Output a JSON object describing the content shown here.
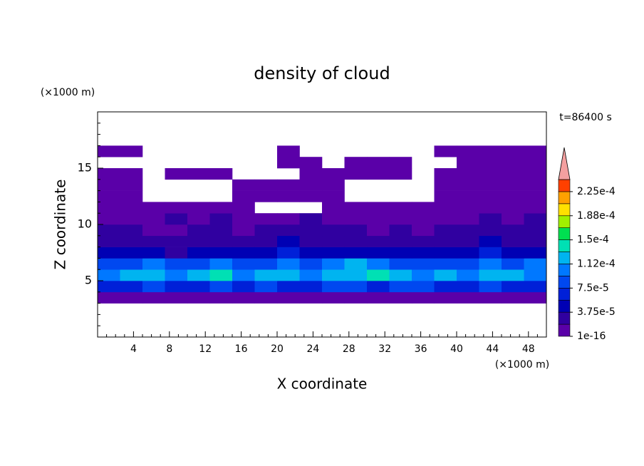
{
  "chart_data": {
    "type": "heatmap",
    "title": "density of cloud",
    "x_label": "X coordinate",
    "y_label": "Z coordinate",
    "x_unit": "(×1000 m)",
    "y_unit": "(×1000 m)",
    "annotation": "t=86400 s",
    "xlim": [
      0,
      50
    ],
    "ylim": [
      0,
      20
    ],
    "xticks": [
      4,
      8,
      12,
      16,
      20,
      24,
      28,
      32,
      36,
      40,
      44,
      48
    ],
    "yticks": [
      5,
      10,
      15
    ],
    "xminorticks": [
      1,
      2,
      3,
      5,
      6,
      7,
      9,
      10,
      11,
      13,
      14,
      15,
      17,
      18,
      19,
      21,
      22,
      23,
      25,
      26,
      27,
      29,
      30,
      31,
      33,
      34,
      35,
      37,
      38,
      39,
      41,
      42,
      43,
      45,
      46,
      47,
      49
    ],
    "yminorticks": [
      1,
      2,
      3,
      4,
      6,
      7,
      8,
      9,
      11,
      12,
      13,
      14,
      16,
      17,
      18,
      19
    ],
    "x_edges": [
      0,
      2.5,
      5,
      7.5,
      10,
      12.5,
      15,
      17.5,
      20,
      22.5,
      25,
      27.5,
      30,
      32.5,
      35,
      37.5,
      40,
      42.5,
      45,
      47.5,
      50
    ],
    "y_edges": [
      3,
      4,
      5,
      6,
      7,
      8,
      9,
      10,
      11,
      12,
      13,
      14,
      15,
      16,
      17
    ],
    "values": [
      [
        5e-06,
        5e-06,
        5e-06,
        5e-06,
        5e-06,
        5e-06,
        5e-06,
        5e-06,
        5e-06,
        5e-06,
        5e-06,
        5e-06,
        5e-06,
        5e-06,
        5e-06,
        5e-06,
        5e-06,
        5e-06,
        5e-06,
        5e-06
      ],
      [
        6e-05,
        7e-05,
        8e-05,
        6e-05,
        7e-05,
        9e-05,
        7e-05,
        8e-05,
        6e-05,
        7e-05,
        8e-05,
        9e-05,
        7e-05,
        8e-05,
        9e-05,
        7e-05,
        6e-05,
        8e-05,
        7e-05,
        6e-05
      ],
      [
        0.00011,
        0.00013,
        0.00012,
        0.0001,
        0.00012,
        0.00014,
        0.00011,
        0.00013,
        0.00012,
        0.0001,
        0.00012,
        0.00013,
        0.00014,
        0.00012,
        0.00011,
        0.00012,
        0.0001,
        0.00013,
        0.00012,
        0.0001
      ],
      [
        8e-05,
        9e-05,
        0.0001,
        8e-05,
        9e-05,
        0.0001,
        9e-05,
        8e-05,
        0.00011,
        9e-05,
        0.0001,
        0.00012,
        0.0001,
        8e-05,
        9e-05,
        8e-05,
        9e-05,
        0.0001,
        9e-05,
        0.0001
      ],
      [
        4e-05,
        5e-05,
        4e-05,
        3e-05,
        4e-05,
        5e-05,
        4e-05,
        4e-05,
        6e-05,
        5e-05,
        4e-05,
        5e-05,
        4e-05,
        4e-05,
        5e-05,
        4e-05,
        5e-05,
        6e-05,
        5e-05,
        4e-05
      ],
      [
        2.5e-05,
        3e-05,
        2.5e-05,
        2e-05,
        2.5e-05,
        3e-05,
        2e-05,
        3e-05,
        4e-05,
        3e-05,
        2.5e-05,
        3e-05,
        2e-05,
        2.5e-05,
        2e-05,
        2.5e-05,
        3e-05,
        4e-05,
        3e-05,
        2.5e-05
      ],
      [
        2e-05,
        2e-05,
        1.5e-05,
        1.5e-05,
        2e-05,
        2.5e-05,
        1.5e-05,
        2e-05,
        3e-05,
        2e-05,
        2e-05,
        2e-05,
        1.5e-05,
        2e-05,
        1.5e-05,
        2e-05,
        2e-05,
        2.5e-05,
        2e-05,
        2e-05
      ],
      [
        1.5e-05,
        1e-05,
        1e-05,
        2e-05,
        1.5e-05,
        2e-05,
        1e-05,
        1e-05,
        1.5e-05,
        2e-05,
        1e-05,
        1e-05,
        1e-05,
        1.5e-05,
        1e-05,
        1e-05,
        1.5e-05,
        2e-05,
        1.5e-05,
        2e-05
      ],
      [
        1e-05,
        1e-05,
        1e-05,
        1.2e-05,
        1.5e-05,
        1e-05,
        1e-05,
        0,
        0,
        0,
        1e-05,
        1e-05,
        1e-05,
        1e-05,
        1e-05,
        1e-05,
        1e-05,
        1.5e-05,
        1.5e-05,
        1e-05
      ],
      [
        8e-06,
        8e-06,
        0,
        0,
        0,
        0,
        8e-06,
        8e-06,
        8e-06,
        8e-06,
        8e-06,
        0,
        0,
        0,
        0,
        8e-06,
        8e-06,
        8e-06,
        8e-06,
        8e-06
      ],
      [
        8e-06,
        8e-06,
        0,
        0,
        0,
        0,
        8e-06,
        8e-06,
        8e-06,
        8e-06,
        8e-06,
        0,
        0,
        0,
        0,
        8e-06,
        8e-06,
        8e-06,
        8e-06,
        8e-06
      ],
      [
        8e-06,
        8e-06,
        0,
        8e-06,
        8e-06,
        8e-06,
        0,
        0,
        0,
        8e-06,
        8e-06,
        8e-06,
        8e-06,
        8e-06,
        0,
        8e-06,
        8e-06,
        8e-06,
        8e-06,
        8e-06
      ],
      [
        0,
        0,
        0,
        0,
        0,
        0,
        0,
        0,
        8e-06,
        8e-06,
        0,
        8e-06,
        8e-06,
        8e-06,
        0,
        0,
        8e-06,
        8e-06,
        8e-06,
        8e-06
      ],
      [
        8e-06,
        8e-06,
        0,
        0,
        0,
        0,
        0,
        0,
        8e-06,
        0,
        0,
        0,
        0,
        0,
        0,
        8e-06,
        8e-06,
        8e-06,
        8e-06,
        8e-06
      ]
    ],
    "colorbar": {
      "levels": [
        1e-16,
        1.875e-05,
        3.75e-05,
        5.625e-05,
        7.5e-05,
        9.375e-05,
        0.0001125,
        0.00013125,
        0.00015,
        0.00016875,
        0.0001875,
        0.00020625,
        0.000225,
        0.00024375
      ],
      "colors": [
        "#5a00a8",
        "#3000a0",
        "#0000b4",
        "#0020d8",
        "#0048f0",
        "#0078ff",
        "#00b4f0",
        "#00e0b4",
        "#00e050",
        "#a0f000",
        "#ffe000",
        "#ffa000",
        "#ff4000"
      ],
      "extend_color": "#f4a0a0",
      "ticks": [
        {
          "value": 1e-16,
          "label": "1e-16"
        },
        {
          "value": 3.75e-05,
          "label": "3.75e-5"
        },
        {
          "value": 7.5e-05,
          "label": "7.5e-5"
        },
        {
          "value": 0.0001125,
          "label": "1.12e-4"
        },
        {
          "value": 0.00015,
          "label": "1.5e-4"
        },
        {
          "value": 0.0001875,
          "label": "1.88e-4"
        },
        {
          "value": 0.000225,
          "label": "2.25e-4"
        }
      ]
    }
  }
}
